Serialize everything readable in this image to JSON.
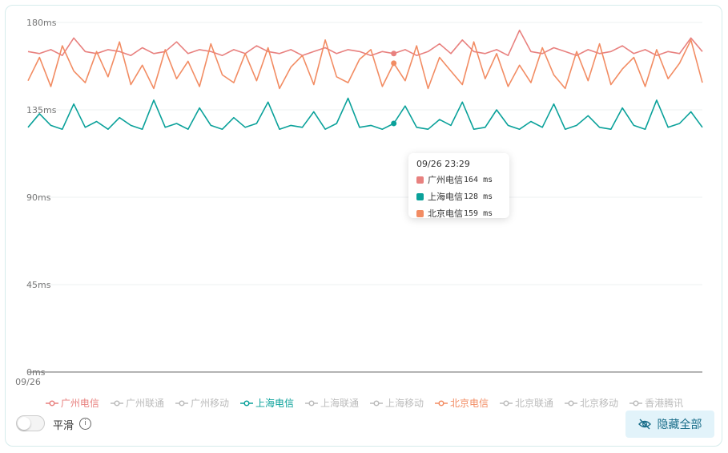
{
  "chart_data": {
    "type": "line",
    "categories": [
      "09/26",
      null,
      null,
      null,
      null,
      null,
      null,
      null,
      null,
      null,
      null,
      null,
      null,
      null,
      null,
      null,
      null,
      null,
      null,
      null,
      null,
      null,
      null,
      null,
      null,
      null,
      null,
      null,
      null,
      null,
      null,
      null,
      null,
      null,
      null,
      null,
      null,
      null,
      null,
      null,
      null,
      null,
      null,
      null,
      null,
      null,
      null,
      null,
      null,
      null,
      null,
      null,
      null,
      null,
      null,
      null,
      null,
      null,
      null,
      null
    ],
    "ylim": [
      0,
      180
    ],
    "yticks": [
      {
        "value": 0,
        "label": "0ms"
      },
      {
        "value": 45,
        "label": "45ms"
      },
      {
        "value": 90,
        "label": "90ms"
      },
      {
        "value": 135,
        "label": "135ms"
      },
      {
        "value": 180,
        "label": "180ms"
      }
    ],
    "grid": true,
    "series": [
      {
        "name": "广州电信",
        "color": "#e8817f",
        "visible": true,
        "values": [
          165,
          164,
          166,
          163,
          172,
          165,
          164,
          166,
          165,
          163,
          167,
          164,
          165,
          170,
          164,
          166,
          165,
          163,
          166,
          164,
          168,
          165,
          164,
          166,
          163,
          165,
          167,
          164,
          166,
          165,
          163,
          165,
          164,
          166,
          163,
          165,
          169,
          164,
          171,
          165,
          164,
          166,
          163,
          176,
          165,
          164,
          167,
          165,
          163,
          166,
          164,
          165,
          168,
          164,
          166,
          163,
          165,
          164,
          172,
          165
        ]
      },
      {
        "name": "广州联通",
        "color": "#bbbbbb",
        "visible": false
      },
      {
        "name": "广州移动",
        "color": "#bbbbbb",
        "visible": false
      },
      {
        "name": "上海电信",
        "color": "#0aa19a",
        "visible": true,
        "values": [
          126,
          133,
          127,
          125,
          138,
          126,
          129,
          125,
          131,
          127,
          125,
          140,
          126,
          128,
          125,
          136,
          127,
          125,
          131,
          126,
          128,
          139,
          125,
          127,
          126,
          134,
          125,
          128,
          141,
          126,
          127,
          125,
          128,
          137,
          126,
          125,
          130,
          127,
          139,
          125,
          126,
          135,
          127,
          125,
          129,
          126,
          138,
          125,
          127,
          132,
          126,
          125,
          136,
          127,
          125,
          140,
          126,
          128,
          134,
          126
        ]
      },
      {
        "name": "上海联通",
        "color": "#bbbbbb",
        "visible": false
      },
      {
        "name": "上海移动",
        "color": "#bbbbbb",
        "visible": false
      },
      {
        "name": "北京电信",
        "color": "#f28c63",
        "visible": true,
        "values": [
          150,
          162,
          147,
          168,
          155,
          149,
          165,
          152,
          170,
          148,
          158,
          146,
          166,
          151,
          160,
          147,
          169,
          153,
          149,
          164,
          150,
          167,
          146,
          157,
          163,
          148,
          171,
          152,
          149,
          161,
          166,
          147,
          159,
          150,
          168,
          146,
          162,
          155,
          148,
          170,
          151,
          164,
          147,
          158,
          149,
          167,
          153,
          146,
          165,
          150,
          169,
          148,
          156,
          162,
          147,
          166,
          151,
          159,
          171,
          149
        ]
      },
      {
        "name": "北京联通",
        "color": "#bbbbbb",
        "visible": false
      },
      {
        "name": "北京移动",
        "color": "#bbbbbb",
        "visible": false
      },
      {
        "name": "香港腾讯",
        "color": "#bbbbbb",
        "visible": false
      }
    ],
    "tooltip": {
      "title": "09/26 23:29",
      "items": [
        {
          "name": "广州电信",
          "value": "164 ms",
          "color": "#e8817f"
        },
        {
          "name": "上海电信",
          "value": "128 ms",
          "color": "#0aa19a"
        },
        {
          "name": "北京电信",
          "value": "159 ms",
          "color": "#f28c63"
        }
      ]
    }
  },
  "controls": {
    "smooth_label": "平滑",
    "hide_all_label": "隐藏全部"
  }
}
